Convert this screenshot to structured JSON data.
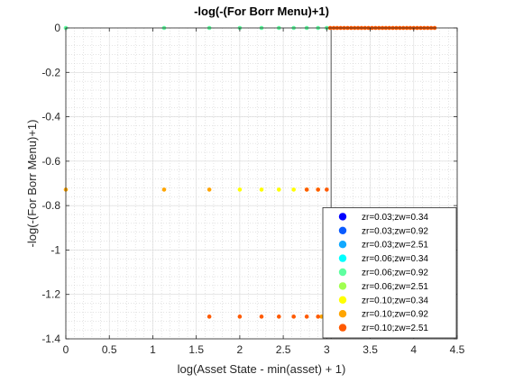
{
  "chart_data": {
    "type": "scatter",
    "title": "-log(-(For Borr Menu)+1)",
    "xlabel": "log(Asset State - min(asset) + 1)",
    "ylabel": "-log(-(For Borr Menu)+1)",
    "xlim": [
      0,
      4.5
    ],
    "ylim": [
      -1.4,
      0
    ],
    "xticks": [
      0,
      0.5,
      1,
      1.5,
      2,
      2.5,
      3,
      3.5,
      4,
      4.5
    ],
    "xtick_labels": [
      "0",
      "0.5",
      "1",
      "1.5",
      "2",
      "2.5",
      "3",
      "3.5",
      "4",
      "4.5"
    ],
    "yticks": [
      0,
      -0.2,
      -0.4,
      -0.6,
      -0.8,
      -1,
      -1.2,
      -1.4
    ],
    "ytick_labels": [
      "0",
      "-0.2",
      "-0.4",
      "-0.6",
      "-0.8",
      "-1",
      "-1.2",
      "-1.4"
    ],
    "grid": "on (major and minor)",
    "legend_position": "bottom-right",
    "vline_x": 3.05,
    "series": [
      {
        "name": "zr=0.03;zw=0.34",
        "color": "#0000ff",
        "points": []
      },
      {
        "name": "zr=0.03;zw=0.92",
        "color": "#0a5bff",
        "points": []
      },
      {
        "name": "zr=0.03;zw=2.51",
        "color": "#11a9ff",
        "points": []
      },
      {
        "name": "zr=0.06;zw=0.34",
        "color": "#00ffff",
        "points": []
      },
      {
        "name": "zr=0.06;zw=0.92",
        "color": "#5fffa0",
        "points": [
          [
            0,
            0
          ],
          [
            1.13,
            0
          ],
          [
            1.65,
            0
          ],
          [
            2.0,
            0
          ],
          [
            2.25,
            0
          ],
          [
            2.45,
            0
          ],
          [
            2.62,
            0
          ],
          [
            2.77,
            0
          ],
          [
            2.9,
            0
          ],
          [
            3.0,
            0
          ]
        ]
      },
      {
        "name": "zr=0.06;zw=2.51",
        "color": "#a0ff50",
        "points": []
      },
      {
        "name": "zr=0.10;zw=0.34",
        "color": "#ffff00",
        "points": [
          [
            2.0,
            -0.728
          ],
          [
            2.25,
            -0.728
          ],
          [
            2.45,
            -0.728
          ],
          [
            2.62,
            -0.728
          ],
          [
            2.77,
            -0.728
          ],
          [
            2.9,
            -0.728
          ]
        ]
      },
      {
        "name": "zr=0.10;zw=0.92",
        "color": "#ffa500",
        "points": [
          [
            0,
            -0.728
          ],
          [
            1.13,
            -0.728
          ],
          [
            1.65,
            -0.728
          ],
          [
            2.94,
            -1.3
          ],
          [
            3.0,
            -1.3
          ]
        ]
      },
      {
        "name": "zr=0.10;zw=2.51",
        "color": "#ff5a00",
        "points": [
          [
            3.04,
            0
          ],
          [
            3.08,
            0
          ],
          [
            3.12,
            0
          ],
          [
            3.16,
            0
          ],
          [
            3.2,
            0
          ],
          [
            3.24,
            0
          ],
          [
            3.28,
            0
          ],
          [
            3.32,
            0
          ],
          [
            3.36,
            0
          ],
          [
            3.4,
            0
          ],
          [
            3.44,
            0
          ],
          [
            3.48,
            0
          ],
          [
            3.52,
            0
          ],
          [
            3.56,
            0
          ],
          [
            3.6,
            0
          ],
          [
            3.64,
            0
          ],
          [
            3.68,
            0
          ],
          [
            3.72,
            0
          ],
          [
            3.76,
            0
          ],
          [
            3.8,
            0
          ],
          [
            3.84,
            0
          ],
          [
            3.88,
            0
          ],
          [
            3.92,
            0
          ],
          [
            3.96,
            0
          ],
          [
            4.0,
            0
          ],
          [
            4.04,
            0
          ],
          [
            4.08,
            0
          ],
          [
            4.12,
            0
          ],
          [
            4.16,
            0
          ],
          [
            4.2,
            0
          ],
          [
            4.24,
            0
          ],
          [
            2.77,
            -0.728
          ],
          [
            2.9,
            -0.728
          ],
          [
            3.0,
            -0.728
          ],
          [
            1.65,
            -1.3
          ],
          [
            2.0,
            -1.3
          ],
          [
            2.25,
            -1.3
          ],
          [
            2.45,
            -1.3
          ],
          [
            2.62,
            -1.3
          ],
          [
            2.77,
            -1.3
          ],
          [
            2.9,
            -1.3
          ]
        ]
      }
    ]
  }
}
